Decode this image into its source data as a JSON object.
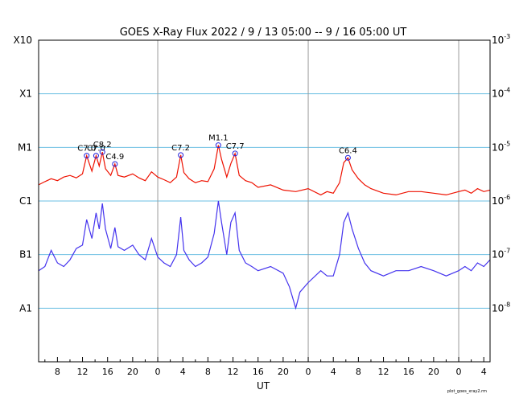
{
  "chart_data": {
    "type": "line",
    "title": "GOES X-Ray Flux   2022 /  9 / 13   05:00 --  9 / 16   05:00   UT",
    "xlabel": "UT",
    "ylabel": "",
    "x_start": "2022-09-13 05:00",
    "x_end": "2022-09-16 05:00",
    "x_tick_labels": [
      "8",
      "12",
      "16",
      "20",
      "0",
      "4",
      "8",
      "12",
      "16",
      "20",
      "0",
      "4",
      "8",
      "12",
      "16",
      "20",
      "0",
      "4"
    ],
    "day_boundaries": [
      "2022-09-14 00:00",
      "2022-09-15 00:00",
      "2022-09-16 00:00"
    ],
    "y_scale": "log",
    "ylim": [
      1e-09,
      0.001
    ],
    "y_left_labels": [
      {
        "label": "X10",
        "value": 0.001
      },
      {
        "label": "X1",
        "value": 0.0001
      },
      {
        "label": "M1",
        "value": 1e-05
      },
      {
        "label": "C1",
        "value": 1e-06
      },
      {
        "label": "B1",
        "value": 1e-07
      },
      {
        "label": "A1",
        "value": 1e-08
      }
    ],
    "y_right_labels": [
      {
        "base": "10",
        "exp": "-3",
        "value": 0.001
      },
      {
        "base": "10",
        "exp": "-4",
        "value": 0.0001
      },
      {
        "base": "10",
        "exp": "-5",
        "value": 1e-05
      },
      {
        "base": "10",
        "exp": "-6",
        "value": 1e-06
      },
      {
        "base": "10",
        "exp": "-7",
        "value": 1e-07
      },
      {
        "base": "10",
        "exp": "-8",
        "value": 1e-08
      }
    ],
    "grid": true,
    "series": [
      {
        "key": "long",
        "color": "#ee1100",
        "x": [
          "2022-09-13 05:00",
          "2022-09-13 06:00",
          "2022-09-13 07:00",
          "2022-09-13 08:00",
          "2022-09-13 09:00",
          "2022-09-13 10:00",
          "2022-09-13 11:00",
          "2022-09-13 12:00",
          "2022-09-13 12:40",
          "2022-09-13 13:30",
          "2022-09-13 14:10",
          "2022-09-13 14:40",
          "2022-09-13 15:10",
          "2022-09-13 15:40",
          "2022-09-13 16:30",
          "2022-09-13 17:10",
          "2022-09-13 17:40",
          "2022-09-13 18:40",
          "2022-09-13 20:00",
          "2022-09-13 21:00",
          "2022-09-13 22:00",
          "2022-09-13 23:00",
          "2022-09-14 00:00",
          "2022-09-14 01:00",
          "2022-09-14 02:00",
          "2022-09-14 03:00",
          "2022-09-14 03:40",
          "2022-09-14 04:10",
          "2022-09-14 05:00",
          "2022-09-14 06:00",
          "2022-09-14 07:00",
          "2022-09-14 08:00",
          "2022-09-14 09:00",
          "2022-09-14 09:40",
          "2022-09-14 10:10",
          "2022-09-14 11:00",
          "2022-09-14 11:40",
          "2022-09-14 12:20",
          "2022-09-14 13:00",
          "2022-09-14 14:00",
          "2022-09-14 15:00",
          "2022-09-14 16:00",
          "2022-09-14 18:00",
          "2022-09-14 20:00",
          "2022-09-14 22:00",
          "2022-09-15 00:00",
          "2022-09-15 02:00",
          "2022-09-15 03:00",
          "2022-09-15 04:00",
          "2022-09-15 05:00",
          "2022-09-15 05:40",
          "2022-09-15 06:20",
          "2022-09-15 07:00",
          "2022-09-15 08:00",
          "2022-09-15 09:00",
          "2022-09-15 10:00",
          "2022-09-15 12:00",
          "2022-09-15 14:00",
          "2022-09-15 16:00",
          "2022-09-15 18:00",
          "2022-09-15 20:00",
          "2022-09-15 22:00",
          "2022-09-16 00:00",
          "2022-09-16 01:00",
          "2022-09-16 02:00",
          "2022-09-16 03:00",
          "2022-09-16 04:00",
          "2022-09-16 05:00"
        ],
        "y": [
          2e-06,
          2.3e-06,
          2.6e-06,
          2.4e-06,
          2.8e-06,
          3e-06,
          2.7e-06,
          3.2e-06,
          7e-06,
          3.6e-06,
          7e-06,
          4.5e-06,
          8.2e-06,
          4e-06,
          3e-06,
          4.9e-06,
          3e-06,
          2.8e-06,
          3.2e-06,
          2.7e-06,
          2.4e-06,
          3.5e-06,
          2.8e-06,
          2.5e-06,
          2.2e-06,
          2.8e-06,
          7.2e-06,
          3.4e-06,
          2.6e-06,
          2.2e-06,
          2.4e-06,
          2.3e-06,
          4e-06,
          1.1e-05,
          6e-06,
          2.8e-06,
          5e-06,
          7.7e-06,
          3e-06,
          2.4e-06,
          2.2e-06,
          1.8e-06,
          2e-06,
          1.6e-06,
          1.5e-06,
          1.7e-06,
          1.3e-06,
          1.5e-06,
          1.4e-06,
          2.2e-06,
          5.2e-06,
          6.4e-06,
          3.8e-06,
          2.6e-06,
          2e-06,
          1.7e-06,
          1.4e-06,
          1.3e-06,
          1.5e-06,
          1.5e-06,
          1.4e-06,
          1.3e-06,
          1.5e-06,
          1.6e-06,
          1.4e-06,
          1.7e-06,
          1.5e-06,
          1.6e-06
        ]
      },
      {
        "key": "short",
        "color": "#4433ee",
        "x": [
          "2022-09-13 05:00",
          "2022-09-13 06:00",
          "2022-09-13 07:00",
          "2022-09-13 08:00",
          "2022-09-13 09:00",
          "2022-09-13 10:00",
          "2022-09-13 11:00",
          "2022-09-13 12:00",
          "2022-09-13 12:40",
          "2022-09-13 13:30",
          "2022-09-13 14:10",
          "2022-09-13 14:40",
          "2022-09-13 15:10",
          "2022-09-13 15:40",
          "2022-09-13 16:30",
          "2022-09-13 17:10",
          "2022-09-13 17:40",
          "2022-09-13 18:40",
          "2022-09-13 20:00",
          "2022-09-13 21:00",
          "2022-09-13 22:00",
          "2022-09-13 23:00",
          "2022-09-14 00:00",
          "2022-09-14 01:00",
          "2022-09-14 02:00",
          "2022-09-14 03:00",
          "2022-09-14 03:40",
          "2022-09-14 04:10",
          "2022-09-14 05:00",
          "2022-09-14 06:00",
          "2022-09-14 07:00",
          "2022-09-14 08:00",
          "2022-09-14 09:00",
          "2022-09-14 09:40",
          "2022-09-14 10:10",
          "2022-09-14 11:00",
          "2022-09-14 11:40",
          "2022-09-14 12:20",
          "2022-09-14 13:00",
          "2022-09-14 14:00",
          "2022-09-14 15:00",
          "2022-09-14 16:00",
          "2022-09-14 18:00",
          "2022-09-14 20:00",
          "2022-09-14 21:00",
          "2022-09-14 22:00",
          "2022-09-14 22:40",
          "2022-09-15 00:00",
          "2022-09-15 02:00",
          "2022-09-15 03:00",
          "2022-09-15 04:00",
          "2022-09-15 05:00",
          "2022-09-15 05:40",
          "2022-09-15 06:20",
          "2022-09-15 07:00",
          "2022-09-15 08:00",
          "2022-09-15 09:00",
          "2022-09-15 10:00",
          "2022-09-15 12:00",
          "2022-09-15 14:00",
          "2022-09-15 16:00",
          "2022-09-15 18:00",
          "2022-09-15 20:00",
          "2022-09-15 22:00",
          "2022-09-16 00:00",
          "2022-09-16 01:00",
          "2022-09-16 02:00",
          "2022-09-16 03:00",
          "2022-09-16 04:00",
          "2022-09-16 05:00"
        ],
        "y": [
          5e-08,
          6e-08,
          1.2e-07,
          7e-08,
          6e-08,
          8e-08,
          1.3e-07,
          1.5e-07,
          4.5e-07,
          2e-07,
          6e-07,
          3e-07,
          9e-07,
          3e-07,
          1.3e-07,
          3.2e-07,
          1.4e-07,
          1.2e-07,
          1.5e-07,
          1e-07,
          8e-08,
          2e-07,
          9e-08,
          7e-08,
          6e-08,
          1e-07,
          5e-07,
          1.2e-07,
          8e-08,
          6e-08,
          7e-08,
          9e-08,
          2.5e-07,
          1e-06,
          4e-07,
          1e-07,
          4e-07,
          6e-07,
          1.2e-07,
          7e-08,
          6e-08,
          5e-08,
          6e-08,
          4.5e-08,
          2.5e-08,
          1e-08,
          2e-08,
          3e-08,
          5e-08,
          4e-08,
          4e-08,
          1e-07,
          4e-07,
          6e-07,
          3e-07,
          1.3e-07,
          7e-08,
          5e-08,
          4e-08,
          5e-08,
          5e-08,
          6e-08,
          5e-08,
          4e-08,
          5e-08,
          6e-08,
          5e-08,
          7e-08,
          6e-08,
          8e-08
        ]
      }
    ],
    "flares": [
      {
        "label": "C7.0",
        "time": "2022-09-13 12:40",
        "value": 7e-06
      },
      {
        "label": "C7.0",
        "time": "2022-09-13 14:10",
        "value": 7e-06
      },
      {
        "label": "C8.2",
        "time": "2022-09-13 15:10",
        "value": 8.2e-06
      },
      {
        "label": "C4.9",
        "time": "2022-09-13 17:10",
        "value": 4.9e-06
      },
      {
        "label": "C7.2",
        "time": "2022-09-14 03:40",
        "value": 7.2e-06
      },
      {
        "label": "M1.1",
        "time": "2022-09-14 09:40",
        "value": 1.1e-05
      },
      {
        "label": "C7.7",
        "time": "2022-09-14 12:20",
        "value": 7.7e-06
      },
      {
        "label": "C6.4",
        "time": "2022-09-15 06:20",
        "value": 6.4e-06
      }
    ],
    "footer": "plot_goes_xray2.rm",
    "colors": {
      "grid": "#6bbfe3",
      "day_line": "#999999",
      "axis": "#000000",
      "flare_marker": "#2222dd"
    }
  }
}
